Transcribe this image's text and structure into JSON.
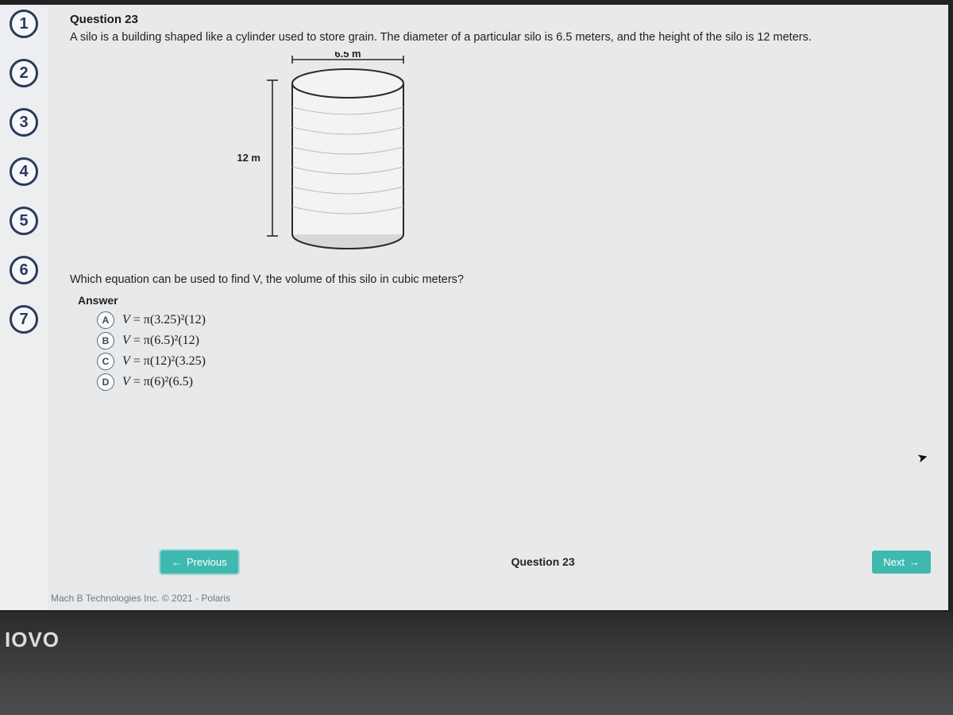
{
  "nav": {
    "items": [
      {
        "label": "1"
      },
      {
        "label": "2"
      },
      {
        "label": "3"
      },
      {
        "label": "4"
      },
      {
        "label": "5"
      },
      {
        "label": "6"
      },
      {
        "label": "7"
      }
    ]
  },
  "question": {
    "title": "Question 23",
    "text": "A silo is a building shaped like a cylinder used to store grain. The diameter of a particular silo is 6.5 meters, and the height of the silo is 12 meters.",
    "subtext": "Which equation can be used to find V, the volume of this silo in cubic meters?",
    "answer_label": "Answer",
    "indicator": "Question 23"
  },
  "diagram": {
    "width_label": "6.5 m",
    "height_label": "12 m",
    "colors": {
      "stroke": "#2a2a2a",
      "fill_light": "#f2f3f4",
      "fill_shadow": "#d6d8da",
      "text": "#222222"
    }
  },
  "options": [
    {
      "letter": "A",
      "eq_html": "<i>V</i> = π(3.25)²(12)"
    },
    {
      "letter": "B",
      "eq_html": "<i>V</i> = π(6.5)²(12)"
    },
    {
      "letter": "C",
      "eq_html": "<i>V</i> = π(12)²(3.25)"
    },
    {
      "letter": "D",
      "eq_html": "<i>V</i> = π(6)²(6.5)"
    }
  ],
  "buttons": {
    "prev": "Previous",
    "next": "Next"
  },
  "footer": "Mach B Technologies Inc. © 2021 - Polaris",
  "brand": "IOVO",
  "colors": {
    "accent": "#3fb9b0",
    "nav_ring": "#2a3a5a",
    "page_bg": "#e8e9ea"
  }
}
